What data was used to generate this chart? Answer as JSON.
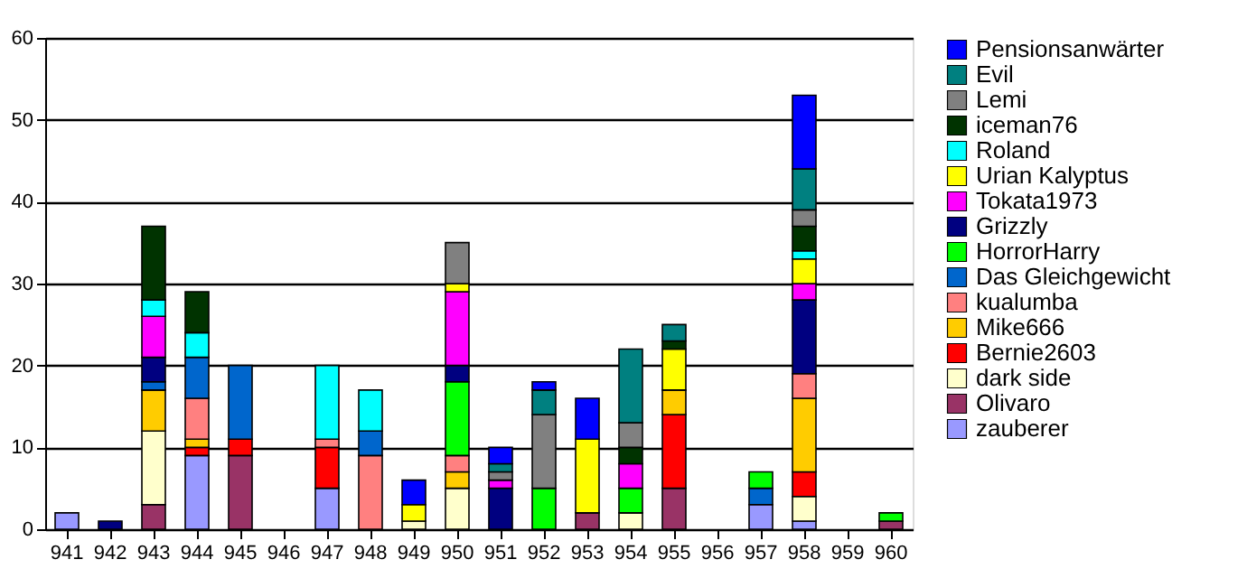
{
  "chart_data": {
    "type": "bar",
    "stacked": true,
    "categories": [
      "941",
      "942",
      "943",
      "944",
      "945",
      "946",
      "947",
      "948",
      "949",
      "950",
      "951",
      "952",
      "953",
      "954",
      "955",
      "956",
      "957",
      "958",
      "959",
      "960"
    ],
    "series": [
      {
        "name": "zauberer",
        "color": "#9999ff",
        "values": [
          2,
          null,
          null,
          9,
          null,
          null,
          5,
          null,
          null,
          null,
          null,
          null,
          null,
          null,
          null,
          null,
          3,
          1,
          null,
          null
        ]
      },
      {
        "name": "Olivaro",
        "color": "#993366",
        "values": [
          null,
          null,
          3,
          null,
          9,
          null,
          null,
          null,
          null,
          null,
          null,
          null,
          2,
          null,
          5,
          null,
          null,
          null,
          null,
          1
        ]
      },
      {
        "name": "dark side",
        "color": "#ffffcc",
        "values": [
          null,
          null,
          9,
          null,
          null,
          null,
          null,
          null,
          1,
          5,
          null,
          null,
          null,
          2,
          null,
          null,
          null,
          3,
          null,
          null
        ]
      },
      {
        "name": "Bernie2603",
        "color": "#ff0000",
        "values": [
          null,
          null,
          null,
          1,
          2,
          null,
          5,
          null,
          null,
          null,
          null,
          null,
          null,
          null,
          9,
          null,
          null,
          3,
          null,
          null
        ]
      },
      {
        "name": "Mike666",
        "color": "#ffcc00",
        "values": [
          null,
          null,
          5,
          1,
          null,
          null,
          null,
          null,
          null,
          2,
          null,
          null,
          null,
          null,
          3,
          null,
          null,
          9,
          null,
          null
        ]
      },
      {
        "name": "kualumba",
        "color": "#ff8080",
        "values": [
          null,
          null,
          null,
          5,
          null,
          null,
          1,
          9,
          null,
          2,
          null,
          null,
          null,
          null,
          null,
          null,
          null,
          3,
          null,
          null
        ]
      },
      {
        "name": "Das Gleichgewicht",
        "color": "#0066cc",
        "values": [
          null,
          null,
          1,
          5,
          9,
          null,
          null,
          3,
          null,
          null,
          null,
          null,
          null,
          null,
          null,
          null,
          2,
          null,
          null,
          null
        ]
      },
      {
        "name": "HorrorHarry",
        "color": "#00ff00",
        "values": [
          null,
          null,
          null,
          null,
          null,
          null,
          null,
          null,
          null,
          9,
          null,
          5,
          null,
          3,
          null,
          null,
          2,
          null,
          null,
          1
        ]
      },
      {
        "name": "Grizzly",
        "color": "#000080",
        "values": [
          null,
          1,
          3,
          null,
          null,
          null,
          null,
          null,
          null,
          2,
          5,
          null,
          null,
          null,
          null,
          null,
          null,
          9,
          null,
          null
        ]
      },
      {
        "name": "Tokata1973",
        "color": "#ff00ff",
        "values": [
          null,
          null,
          5,
          null,
          null,
          null,
          null,
          null,
          null,
          9,
          1,
          null,
          null,
          3,
          null,
          null,
          null,
          2,
          null,
          null
        ]
      },
      {
        "name": "Urian Kalyptus",
        "color": "#ffff00",
        "values": [
          null,
          null,
          null,
          null,
          null,
          null,
          null,
          null,
          2,
          1,
          null,
          null,
          9,
          null,
          5,
          null,
          null,
          3,
          null,
          null
        ]
      },
      {
        "name": "Roland",
        "color": "#00ffff",
        "values": [
          null,
          null,
          2,
          3,
          null,
          null,
          9,
          5,
          null,
          null,
          null,
          null,
          null,
          null,
          null,
          null,
          null,
          1,
          null,
          null
        ]
      },
      {
        "name": "iceman76",
        "color": "#003300",
        "values": [
          null,
          null,
          9,
          5,
          null,
          null,
          null,
          null,
          null,
          null,
          null,
          null,
          null,
          2,
          1,
          null,
          null,
          3,
          null,
          null
        ]
      },
      {
        "name": "Lemi",
        "color": "#808080",
        "values": [
          null,
          null,
          null,
          null,
          null,
          null,
          null,
          null,
          null,
          5,
          1,
          9,
          null,
          3,
          null,
          null,
          null,
          2,
          null,
          null
        ]
      },
      {
        "name": "Evil",
        "color": "#008080",
        "values": [
          null,
          null,
          null,
          null,
          null,
          null,
          null,
          null,
          null,
          null,
          1,
          3,
          null,
          9,
          2,
          null,
          null,
          5,
          null,
          null
        ]
      },
      {
        "name": "Pensionsanwärter",
        "color": "#0000ff",
        "values": [
          null,
          null,
          null,
          null,
          null,
          null,
          null,
          null,
          3,
          null,
          2,
          1,
          5,
          null,
          null,
          null,
          null,
          9,
          null,
          null
        ]
      }
    ],
    "ylim": [
      0,
      60
    ],
    "yticks": [
      0,
      10,
      20,
      30,
      40,
      50,
      60
    ],
    "grid": "y",
    "legend": "right"
  }
}
